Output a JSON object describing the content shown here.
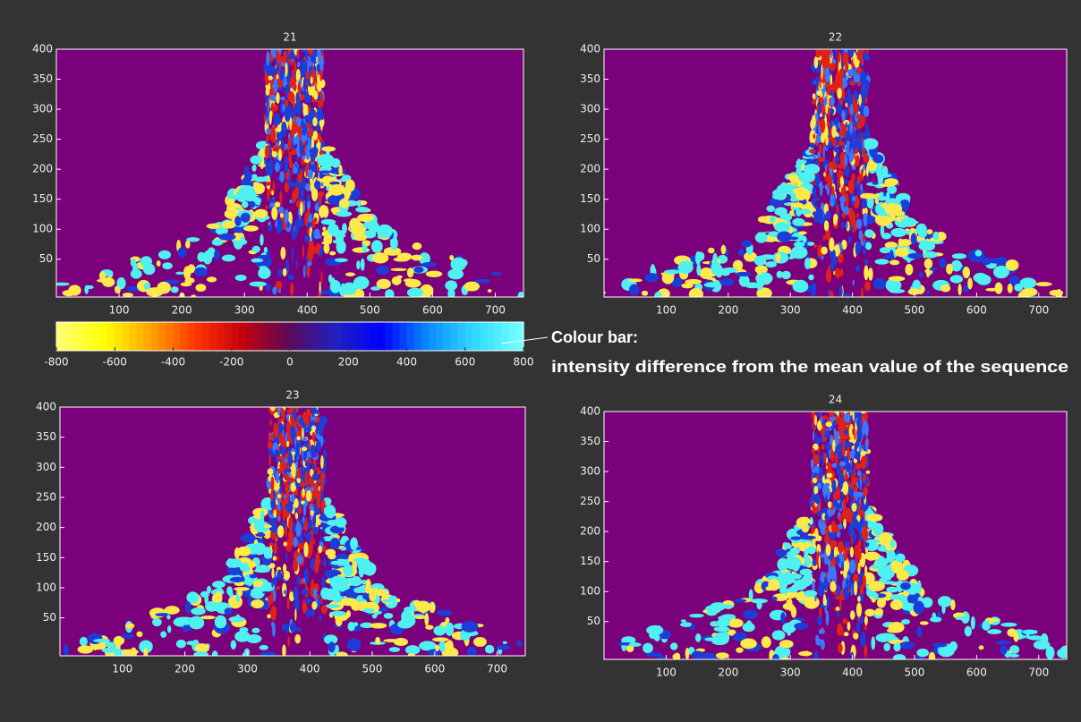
{
  "chart_data": [
    {
      "type": "image",
      "title": "21",
      "xlim": [
        0,
        745
      ],
      "ylim": [
        -13,
        400
      ],
      "xticks": [
        100,
        200,
        300,
        400,
        500,
        600,
        700
      ],
      "yticks": [
        50,
        100,
        150,
        200,
        250,
        300,
        350,
        400
      ]
    },
    {
      "type": "image",
      "title": "22",
      "xlim": [
        0,
        745
      ],
      "ylim": [
        -13,
        400
      ],
      "xticks": [
        100,
        200,
        300,
        400,
        500,
        600,
        700
      ],
      "yticks": [
        50,
        100,
        150,
        200,
        250,
        300,
        350,
        400
      ]
    },
    {
      "type": "image",
      "title": "23",
      "xlim": [
        0,
        745
      ],
      "ylim": [
        -13,
        400
      ],
      "xticks": [
        100,
        200,
        300,
        400,
        500,
        600,
        700
      ],
      "yticks": [
        50,
        100,
        150,
        200,
        250,
        300,
        350,
        400
      ]
    },
    {
      "type": "image",
      "title": "24",
      "xlim": [
        0,
        745
      ],
      "ylim": [
        -13,
        400
      ],
      "xticks": [
        100,
        200,
        300,
        400,
        500,
        600,
        700
      ],
      "yticks": [
        50,
        100,
        150,
        200,
        250,
        300,
        350,
        400
      ]
    },
    {
      "type": "colorbar",
      "clim": [
        -800,
        800
      ],
      "ticks": [
        -800,
        -600,
        -400,
        -200,
        0,
        200,
        400,
        600,
        800
      ],
      "colormap": [
        "#ffff70",
        "#ffff00",
        "#ffa000",
        "#ff3000",
        "#c00010",
        "#5a0a5a",
        "#2020c0",
        "#0000ff",
        "#0a8cff",
        "#30d8ff",
        "#70ffff"
      ],
      "annotation": [
        "Colour bar:",
        "intensity difference from the mean value of the sequence"
      ]
    }
  ]
}
